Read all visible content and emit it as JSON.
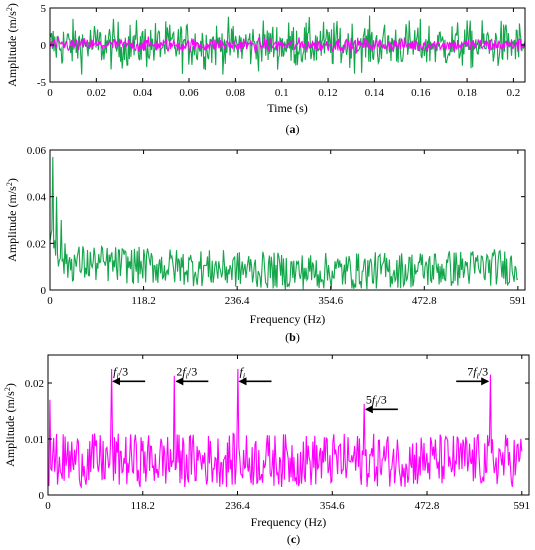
{
  "colors": {
    "green": "#13a54a",
    "magenta": "#ff00ff",
    "axis": "#000000"
  },
  "chart_data": [
    {
      "id": "a",
      "type": "line",
      "caption_letter": "a",
      "caption_open": "(",
      "caption_close": ")",
      "xlabel": "Time (s)",
      "ylabel_main": "Amplitude",
      "ylabel_unit": "(m/s",
      "ylabel_sup": "2",
      "ylabel_close": ")",
      "xlim": [
        0,
        0.205
      ],
      "ylim": [
        -5,
        5
      ],
      "xticks": [
        0,
        0.02,
        0.04,
        0.06,
        0.08,
        0.1,
        0.12,
        0.14,
        0.16,
        0.18,
        0.2
      ],
      "xtick_labels": [
        "0",
        "0.02",
        "0.04",
        "0.06",
        "0.08",
        "0.1",
        "0.12",
        "0.14",
        "0.16",
        "0.18",
        "0.2"
      ],
      "yticks": [
        -5,
        0,
        5
      ],
      "ytick_labels": [
        "-5",
        "0",
        "5"
      ],
      "series": [
        {
          "color_key": "green",
          "kind": "time_noise",
          "amplitude_peak": 4.0,
          "points": 600
        },
        {
          "color_key": "magenta",
          "kind": "time_noise",
          "amplitude_peak": 1.2,
          "points": 600
        }
      ]
    },
    {
      "id": "b",
      "type": "line",
      "caption_letter": "b",
      "caption_open": "(",
      "caption_close": ")",
      "xlabel": "Frequency (Hz)",
      "ylabel_main": "Amplitude",
      "ylabel_unit": "(m/s",
      "ylabel_sup": "2",
      "ylabel_close": ")",
      "xlim": [
        0,
        600
      ],
      "ylim": [
        0,
        0.06
      ],
      "xticks": [
        0,
        118.2,
        236.4,
        354.6,
        472.8,
        591
      ],
      "xtick_labels": [
        "0",
        "118.2",
        "236.4",
        "354.6",
        "472.8",
        "591"
      ],
      "yticks": [
        0,
        0.02,
        0.04,
        0.06
      ],
      "ytick_labels": [
        "0",
        "0.02",
        "0.04",
        "0.06"
      ],
      "series": [
        {
          "color_key": "green",
          "kind": "spectrum",
          "points": 500,
          "peaks": [
            [
              4,
              0.057
            ],
            [
              8,
              0.04
            ],
            [
              14,
              0.03
            ]
          ]
        }
      ]
    },
    {
      "id": "c",
      "type": "line",
      "caption_letter": "c",
      "caption_open": "(",
      "caption_close": ")",
      "xlabel": "Frequency (Hz)",
      "ylabel_main": "Amplitude",
      "ylabel_unit": "(m/s",
      "ylabel_sup": "2",
      "ylabel_close": ")",
      "xlim": [
        0,
        600
      ],
      "ylim": [
        0,
        0.025
      ],
      "xticks": [
        0,
        118.2,
        236.4,
        354.6,
        472.8,
        591
      ],
      "xtick_labels": [
        "0",
        "118.2",
        "236.4",
        "354.6",
        "472.8",
        "591"
      ],
      "yticks": [
        0,
        0.01,
        0.02
      ],
      "ytick_labels": [
        "0",
        "0.01",
        "0.02"
      ],
      "series": [
        {
          "color_key": "magenta",
          "kind": "spectrum",
          "points": 500,
          "peaks": [
            [
              78.8,
              0.0225
            ],
            [
              157.6,
              0.0213
            ],
            [
              236.4,
              0.0225
            ],
            [
              394,
              0.0163
            ],
            [
              551.6,
              0.0215
            ],
            [
              2,
              0.017
            ]
          ]
        }
      ],
      "annotations": [
        {
          "id": "fi3",
          "prefix": "",
          "f": "f",
          "sub": "i",
          "suffix": "/3",
          "at_x": 78.8,
          "at_y": 0.0203,
          "arrow": "left"
        },
        {
          "id": "2fi3",
          "prefix": "2",
          "f": "f",
          "sub": "i",
          "suffix": "/3",
          "at_x": 157.6,
          "at_y": 0.0203,
          "arrow": "left"
        },
        {
          "id": "fi",
          "prefix": "",
          "f": "f",
          "sub": "i",
          "suffix": "",
          "at_x": 236.4,
          "at_y": 0.0203,
          "arrow": "left"
        },
        {
          "id": "5fi3",
          "prefix": "5",
          "f": "f",
          "sub": "i",
          "suffix": "/3",
          "at_x": 394,
          "at_y": 0.0153,
          "arrow": "left"
        },
        {
          "id": "7fi3",
          "prefix": "7",
          "f": "f",
          "sub": "i",
          "suffix": "/3",
          "at_x": 551.6,
          "at_y": 0.0203,
          "arrow": "right"
        }
      ]
    }
  ]
}
